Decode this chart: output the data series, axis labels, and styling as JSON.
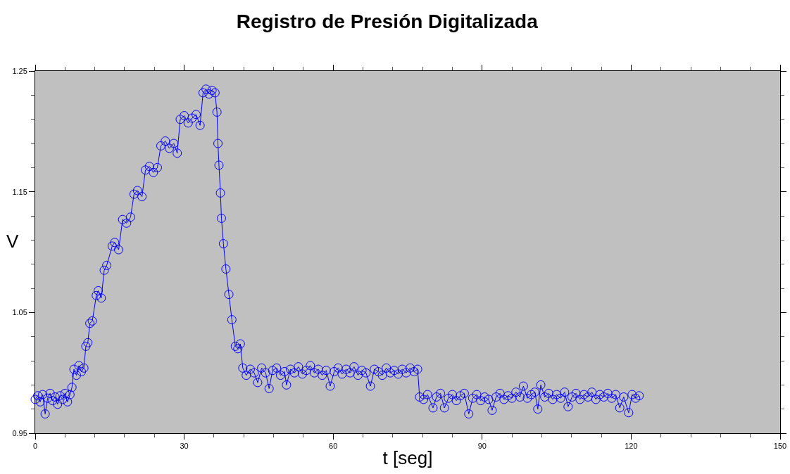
{
  "chart_data": {
    "type": "line",
    "title": "Registro de Presión Digitalizada",
    "xlabel": "t [seg]",
    "ylabel": "V",
    "x": [
      0,
      0.5,
      1,
      1.5,
      2,
      2.5,
      3,
      3.5,
      4,
      4.5,
      5,
      5.5,
      6,
      6.5,
      7,
      7.4,
      7.8,
      8.3,
      8.8,
      9.3,
      9.8,
      10.2,
      10.6,
      11.0,
      11.5,
      12.3,
      12.7,
      13.3,
      13.9,
      14.4,
      15.5,
      16.0,
      16.8,
      17.6,
      18.4,
      19.2,
      19.9,
      20.6,
      21.5,
      22.2,
      23.0,
      23.8,
      24.6,
      25.3,
      26.2,
      27.0,
      27.9,
      28.6,
      29.2,
      30.0,
      30.8,
      31.6,
      32.4,
      33.2,
      33.8,
      34.4,
      35.0,
      35.6,
      36.2,
      36.6,
      36.8,
      37.0,
      37.3,
      37.5,
      37.9,
      38.4,
      39.0,
      39.6,
      40.3,
      40.8,
      41.3,
      41.8,
      42.5,
      43.3,
      44.1,
      44.8,
      45.6,
      46.4,
      47.1,
      47.8,
      48.6,
      49.4,
      50.2,
      50.6,
      51.4,
      52.2,
      53.0,
      53.8,
      54.6,
      55.4,
      56.2,
      57.0,
      57.8,
      58.6,
      59.4,
      60.2,
      61.0,
      61.8,
      62.6,
      63.4,
      64.2,
      65.0,
      65.8,
      66.6,
      67.5,
      68.3,
      69.1,
      69.9,
      70.7,
      71.5,
      72.3,
      73.1,
      73.9,
      74.7,
      75.5,
      76.3,
      77.0,
      77.4,
      78.2,
      79.0,
      80.1,
      80.8,
      81.6,
      82.4,
      83.2,
      84.0,
      84.8,
      85.6,
      86.4,
      87.3,
      88.1,
      88.9,
      89.7,
      90.5,
      91.3,
      92.0,
      92.8,
      93.6,
      94.4,
      95.2,
      96.0,
      96.8,
      97.6,
      98.3,
      99.1,
      99.9,
      100.6,
      101.2,
      101.8,
      102.6,
      103.4,
      104.2,
      105.0,
      105.8,
      106.6,
      107.3,
      108.1,
      108.9,
      109.7,
      110.5,
      111.3,
      112.1,
      112.9,
      113.7,
      114.5,
      115.3,
      116.1,
      116.9,
      117.7,
      118.5,
      119.5,
      120.2,
      120.9,
      121.6
    ],
    "series": [
      {
        "color": "#0000ff",
        "values": [
          0.978,
          0.981,
          0.976,
          0.982,
          0.966,
          0.979,
          0.983,
          0.977,
          0.98,
          0.974,
          0.981,
          0.978,
          0.983,
          0.976,
          0.982,
          0.988,
          1.003,
          0.998,
          1.006,
          1.001,
          1.004,
          1.022,
          1.025,
          1.041,
          1.043,
          1.064,
          1.068,
          1.062,
          1.085,
          1.089,
          1.105,
          1.108,
          1.102,
          1.127,
          1.124,
          1.129,
          1.148,
          1.151,
          1.146,
          1.168,
          1.171,
          1.166,
          1.17,
          1.188,
          1.192,
          1.186,
          1.19,
          1.182,
          1.21,
          1.213,
          1.207,
          1.211,
          1.214,
          1.205,
          1.232,
          1.235,
          1.231,
          1.234,
          1.232,
          1.216,
          1.19,
          1.172,
          1.149,
          1.128,
          1.107,
          1.086,
          1.065,
          1.044,
          1.022,
          1.02,
          1.024,
          1.004,
          0.998,
          1.003,
          1.0,
          0.992,
          1.004,
          1.0,
          0.987,
          1.002,
          1.004,
          0.998,
          1.001,
          0.99,
          1.003,
          1.0,
          1.005,
          0.999,
          1.002,
          1.006,
          1.0,
          1.003,
          0.998,
          1.002,
          0.989,
          1.001,
          1.004,
          0.999,
          1.003,
          1.0,
          1.005,
          0.998,
          1.002,
          1.0,
          0.989,
          1.003,
          1.001,
          0.998,
          1.004,
          1.0,
          1.002,
          0.999,
          1.003,
          1.0,
          1.004,
          1.001,
          1.003,
          0.98,
          0.978,
          0.982,
          0.971,
          0.98,
          0.983,
          0.971,
          0.979,
          0.982,
          0.977,
          0.981,
          0.983,
          0.966,
          0.979,
          0.982,
          0.977,
          0.98,
          0.978,
          0.969,
          0.98,
          0.983,
          0.978,
          0.981,
          0.979,
          0.984,
          0.98,
          0.989,
          0.979,
          0.982,
          0.984,
          0.97,
          0.99,
          0.98,
          0.983,
          0.978,
          0.982,
          0.979,
          0.984,
          0.972,
          0.98,
          0.983,
          0.978,
          0.982,
          0.98,
          0.984,
          0.978,
          0.982,
          0.98,
          0.983,
          0.979,
          0.982,
          0.971,
          0.98,
          0.967,
          0.982,
          0.979,
          0.981
        ]
      }
    ],
    "marker": "circle",
    "line_style": "solid",
    "grid": false,
    "xlim": [
      0,
      150
    ],
    "xticks": [
      0,
      {
        "value": 6,
        "label": null
      },
      {
        "value": 12,
        "label": null
      },
      {
        "value": 18,
        "label": null
      },
      {
        "value": 24,
        "label": null
      },
      30,
      {
        "value": 36,
        "label": null
      },
      {
        "value": 42,
        "label": null
      },
      {
        "value": 48,
        "label": null
      },
      {
        "value": 54,
        "label": null
      },
      60,
      {
        "value": 66,
        "label": null
      },
      {
        "value": 72,
        "label": null
      },
      {
        "value": 78,
        "label": null
      },
      {
        "value": 84,
        "label": null
      },
      90,
      {
        "value": 96,
        "label": null
      },
      {
        "value": 102,
        "label": null
      },
      {
        "value": 108,
        "label": null
      },
      {
        "value": 114,
        "label": null
      },
      120,
      {
        "value": 126,
        "label": null
      },
      {
        "value": 132,
        "label": null
      },
      {
        "value": 138,
        "label": null
      },
      {
        "value": 144,
        "label": null
      },
      150
    ],
    "ylim": [
      0.95,
      1.25
    ],
    "yticks": [
      0.95,
      {
        "value": 0.97,
        "label": null
      },
      {
        "value": 0.99,
        "label": null
      },
      {
        "value": 1.01,
        "label": null
      },
      {
        "value": 1.03,
        "label": null
      },
      1.05,
      {
        "value": 1.07,
        "label": null
      },
      {
        "value": 1.09,
        "label": null
      },
      {
        "value": 1.11,
        "label": null
      },
      {
        "value": 1.13,
        "label": null
      },
      1.15,
      {
        "value": 1.17,
        "label": null
      },
      {
        "value": 1.19,
        "label": null
      },
      {
        "value": 1.21,
        "label": null
      },
      {
        "value": 1.23,
        "label": null
      },
      1.25
    ]
  }
}
